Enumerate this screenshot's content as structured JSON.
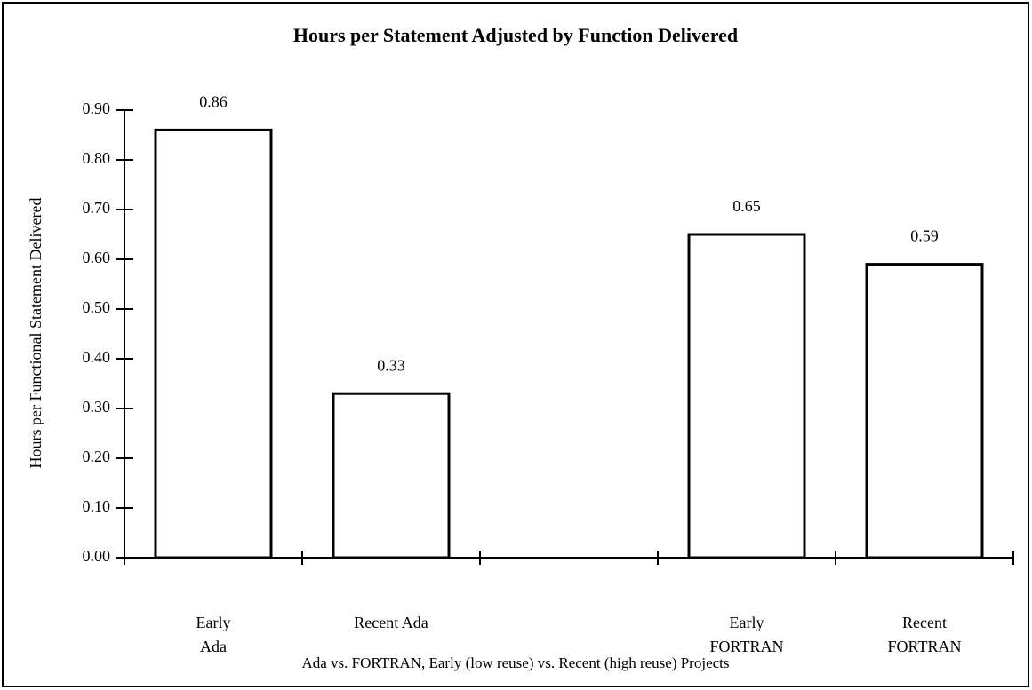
{
  "chart_data": {
    "type": "bar",
    "title": "Hours per Statement Adjusted by Function Delivered",
    "x_label": "Ada vs. FORTRAN, Early (low reuse) vs. Recent (high reuse) Projects",
    "y_label": "Hours per Functional Statement Delivered",
    "categories": [
      "Early\nAda",
      "Recent Ada",
      null,
      "Early\nFORTRAN",
      "Recent\nFORTRAN"
    ],
    "values": [
      0.86,
      0.33,
      null,
      0.65,
      0.59
    ],
    "color": "#ffffff",
    "ylim": [
      0,
      0.9
    ],
    "yticks": [
      {
        "value": 0,
        "label": "0.00"
      },
      {
        "value": 0.1,
        "label": "0.10"
      },
      {
        "value": 0.2,
        "label": "0.20"
      },
      {
        "value": 0.3,
        "label": "0.30"
      },
      {
        "value": 0.4,
        "label": "0.40"
      },
      {
        "value": 0.5,
        "label": "0.50"
      },
      {
        "value": 0.6,
        "label": "0.60"
      },
      {
        "value": 0.7,
        "label": "0.70"
      },
      {
        "value": 0.8,
        "label": "0.80"
      },
      {
        "value": 0.9,
        "label": "0.90"
      }
    ],
    "grid": false
  }
}
